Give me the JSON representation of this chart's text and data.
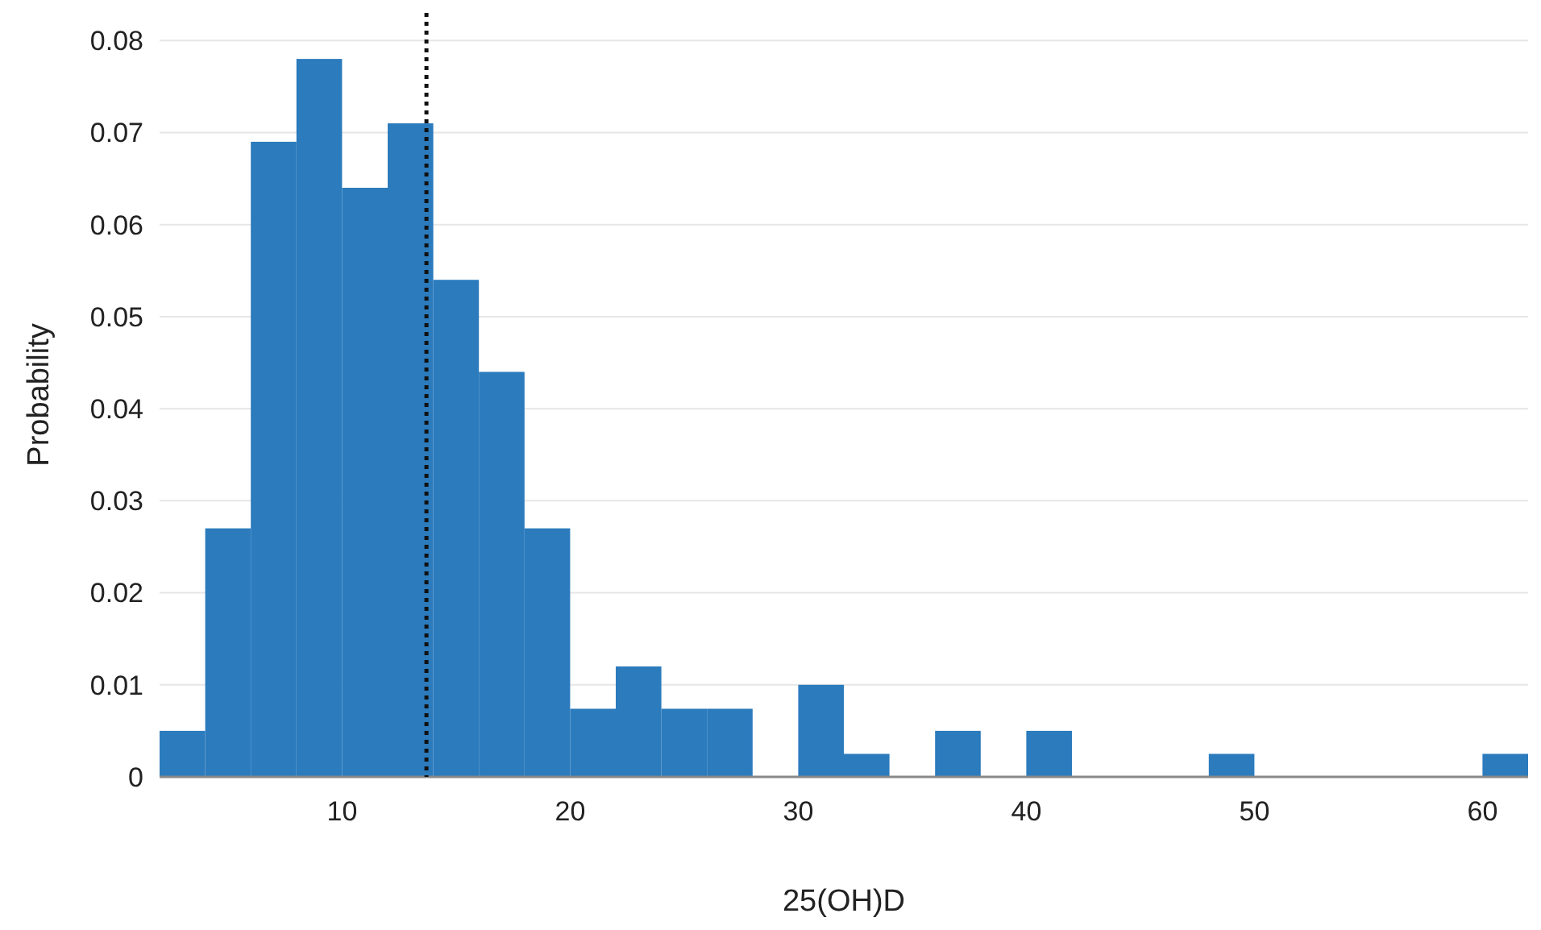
{
  "chart_data": {
    "type": "histogram",
    "xlabel": "25(OH)D",
    "ylabel": "Probability",
    "bins": [
      2,
      4,
      6,
      8,
      10,
      12,
      14,
      16,
      18,
      20,
      22,
      24,
      26,
      28,
      30,
      32,
      34,
      36,
      38,
      40,
      42,
      44,
      46,
      48,
      50,
      52,
      54,
      56,
      58,
      60,
      62
    ],
    "values": [
      0.005,
      0.027,
      0.069,
      0.078,
      0.064,
      0.071,
      0.054,
      0.044,
      0.027,
      0.0074,
      0.012,
      0.0074,
      0.0074,
      0,
      0.01,
      0.0025,
      0,
      0.005,
      0,
      0.005,
      0,
      0,
      0,
      0.0025,
      0,
      0,
      0,
      0,
      0,
      0.0025
    ],
    "color": "#2b7bbd",
    "xlim": [
      2,
      62
    ],
    "xticks": [
      10,
      20,
      30,
      40,
      50,
      60
    ],
    "ylim": [
      0,
      0.083
    ],
    "yticks": [
      0,
      0.01,
      0.02,
      0.03,
      0.04,
      0.05,
      0.06,
      0.07,
      0.08
    ],
    "grid": "y",
    "ref_lines": [
      {
        "axis": "x",
        "value": 13.7,
        "color": "#111111",
        "line_style": "dotted"
      }
    ]
  }
}
